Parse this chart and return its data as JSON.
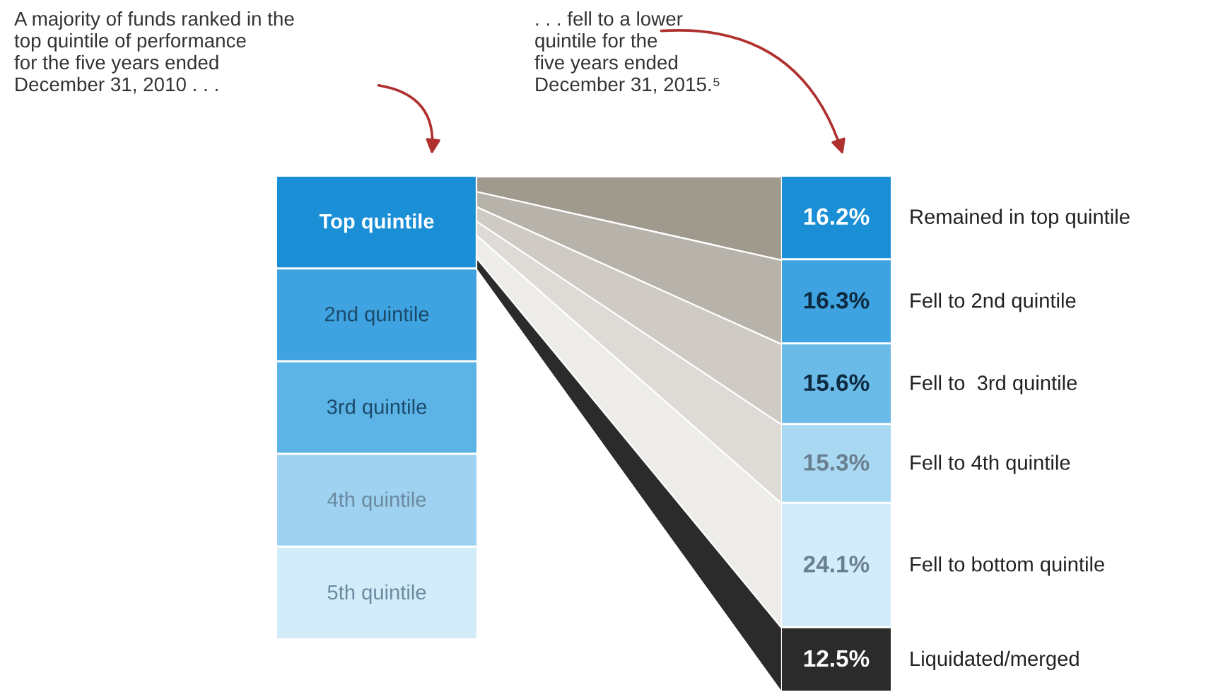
{
  "chart_data": {
    "type": "other",
    "annotations": [
      "A majority of funds ranked in the\ntop quintile of performance\nfor the five years ended\nDecember 31, 2010 . . .",
      ". . . fell to a lower\nquintile for the\nfive years ended\nDecember 31, 2015.⁵"
    ],
    "y_categories": [
      "Top quintile",
      "2nd quintile",
      "3rd quintile",
      "4th quintile",
      "5th quintile"
    ],
    "categories": [
      "Remained in top quintile",
      "Fell to 2nd quintile",
      "Fell to  3rd quintile",
      "Fell to 4th quintile",
      "Fell to bottom quintile",
      "Liquidated/merged"
    ],
    "values": [
      16.2,
      16.3,
      15.6,
      15.3,
      24.1,
      12.5
    ],
    "colors": [
      "#1a8fd6",
      "#3ea3e0",
      "#6bbbe8",
      "#a9d8f2",
      "#d3ecf9",
      "#2b2b2b"
    ],
    "value_labels": [
      "16.2%",
      "16.3%",
      "15.6%",
      "15.3%",
      "24.1%",
      "12.5%"
    ]
  }
}
